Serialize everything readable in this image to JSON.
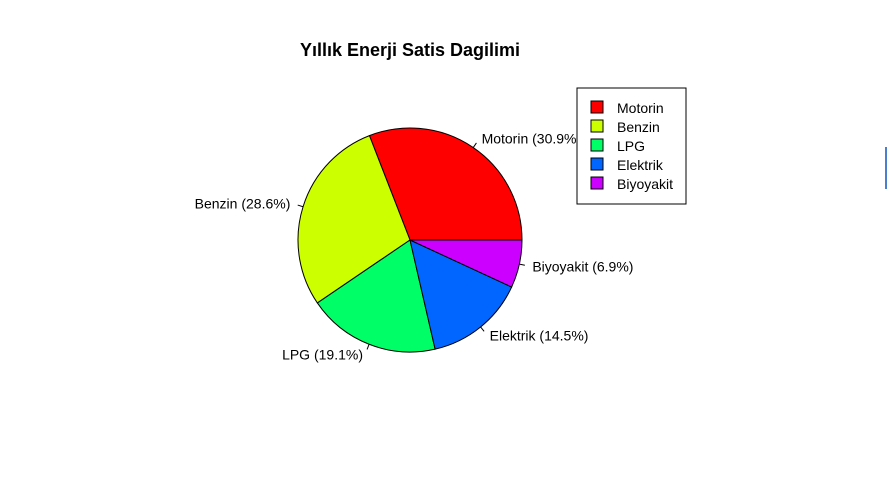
{
  "chart_data": {
    "type": "pie",
    "title": "Yıllık Enerji Satis Dagilimi",
    "categories": [
      "Motorin",
      "Benzin",
      "LPG",
      "Elektrik",
      "Biyoyakit"
    ],
    "values": [
      30.9,
      28.6,
      19.1,
      14.5,
      6.9
    ],
    "slice_labels": [
      "Motorin (30.9%)",
      "Benzin (28.6%)",
      "LPG (19.1%)",
      "Elektrik (14.5%)",
      "Biyoyakit (6.9%)"
    ],
    "colors": [
      "#FF0000",
      "#CCFF00",
      "#00FF66",
      "#0066FF",
      "#CC00FF"
    ],
    "start_angle_deg": 0,
    "direction": "counterclockwise",
    "legend": {
      "position": "top-right",
      "entries": [
        "Motorin",
        "Benzin",
        "LPG",
        "Elektrik",
        "Biyoyakit"
      ]
    }
  }
}
